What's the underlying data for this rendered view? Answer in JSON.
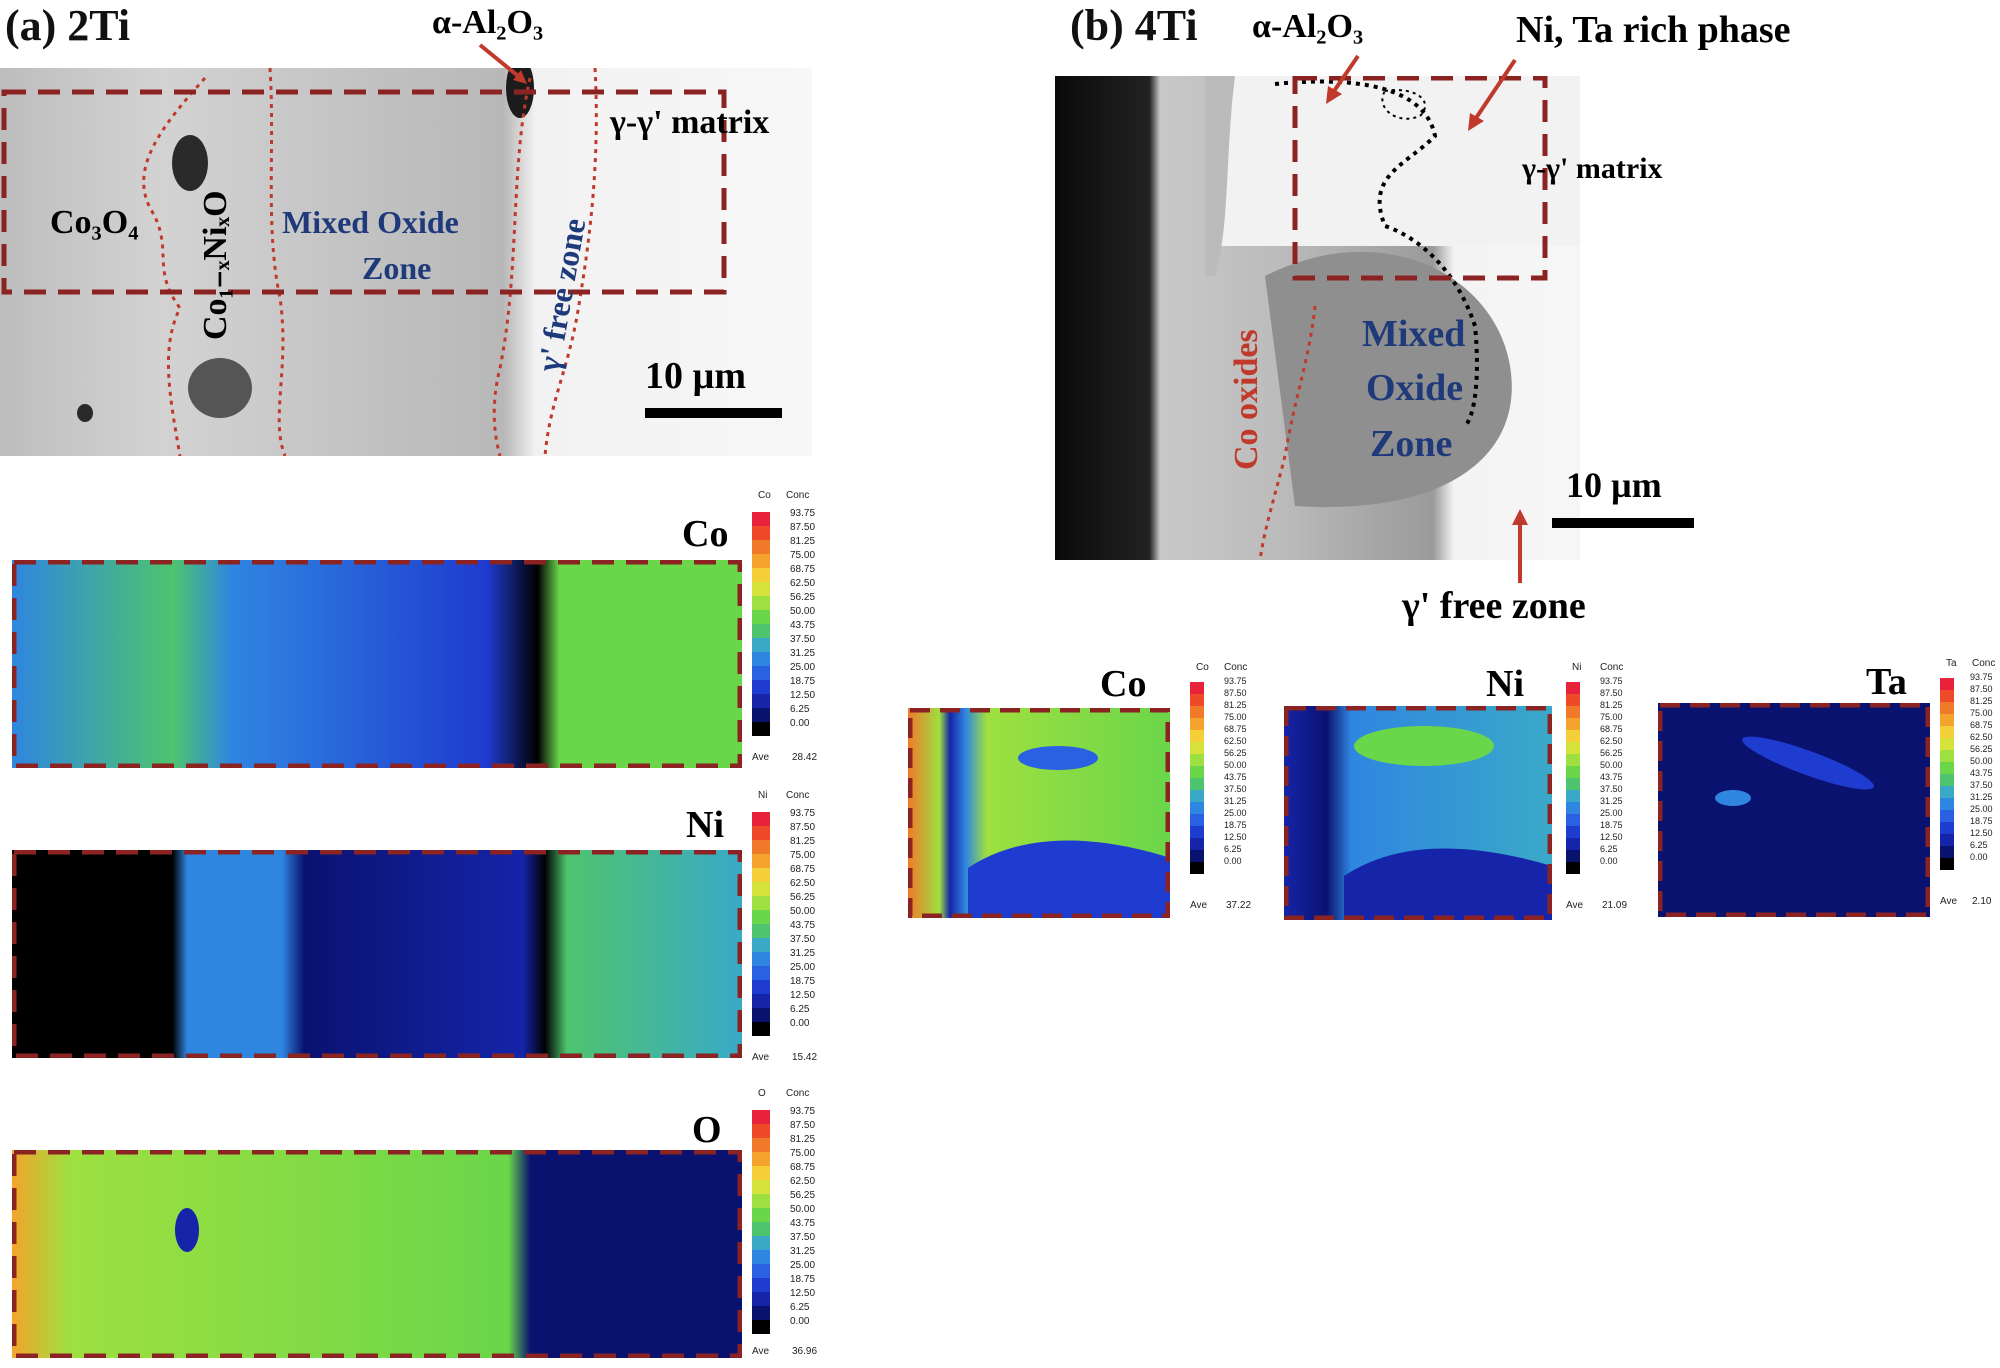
{
  "panels": {
    "a": {
      "label": "(a) 2Ti",
      "annotations": {
        "alumina": "α-Al₂O₃",
        "matrix": "γ-γ' matrix",
        "co3o4": "Co₃O₄",
        "coni_oxide": "Co₁₋ₓNiₓO",
        "mixed1": "Mixed Oxide",
        "mixed2": "Zone",
        "gamma_free": "γ' free zone",
        "scalebar": "10 µm"
      },
      "maps": [
        {
          "element": "Co",
          "ave": "28.42"
        },
        {
          "element": "Ni",
          "ave": "15.42"
        },
        {
          "element": "O",
          "ave": "36.96"
        }
      ]
    },
    "b": {
      "label": "(b) 4Ti",
      "annotations": {
        "alumina": "α-Al₂O₃",
        "nita": "Ni, Ta rich phase",
        "matrix": "γ-γ' matrix",
        "co_oxides": "Co oxides",
        "mixed1": "Mixed",
        "mixed2": "Oxide",
        "mixed3": "Zone",
        "scalebar": "10 µm",
        "gamma_free": "γ' free zone"
      },
      "maps": [
        {
          "element": "Co",
          "ave": "37.22"
        },
        {
          "element": "Ni",
          "ave": "21.09"
        },
        {
          "element": "Ta",
          "ave": "2.10"
        }
      ]
    }
  },
  "colorbar": {
    "conc_header": "Conc",
    "ave_label": "Ave",
    "ticks": [
      "93.75",
      "87.50",
      "81.25",
      "75.00",
      "68.75",
      "62.50",
      "56.25",
      "50.00",
      "43.75",
      "37.50",
      "31.25",
      "25.00",
      "18.75",
      "12.50",
      "6.25",
      "0.00"
    ],
    "colors": [
      "#e8223a",
      "#ee4a2a",
      "#f07a2a",
      "#f4a42c",
      "#f4cf38",
      "#d6e33a",
      "#9ee040",
      "#6ad64a",
      "#4ec46e",
      "#3aa9c8",
      "#2f86e0",
      "#2a60e2",
      "#1f3cd0",
      "#1524a8",
      "#0a1270",
      "#000000"
    ]
  },
  "colors": {
    "dash": "#8b2323",
    "annot_red": "#c0392b",
    "annot_blue": "#1f3a7a"
  }
}
